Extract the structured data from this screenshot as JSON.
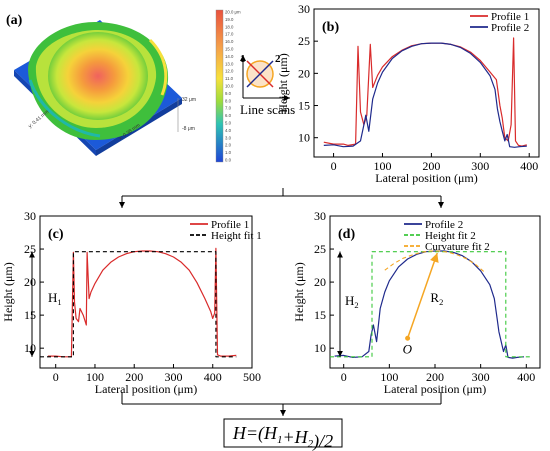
{
  "panel_a": {
    "label": "(a)",
    "scale_ticks": [
      "20.0 μm",
      "19.0",
      "18.0",
      "17.0",
      "16.0",
      "15.0",
      "14.0",
      "13.0",
      "12.0",
      "11.0",
      "10.0",
      "9.0",
      "8.0",
      "7.0",
      "6.0",
      "5.0",
      "4.0",
      "3.0",
      "2.0",
      "1.0",
      "0.0"
    ],
    "z_top": "32 μm",
    "z_bottom": "-8 μm",
    "y_extent": "y: 0.41 mm",
    "x_extent": "x: 0.38 mm",
    "scan_label_1": "1",
    "scan_label_2": "2",
    "scan_caption": "Line scans"
  },
  "formula": "H=(H1+H2)/2",
  "colors": {
    "profile1": "#d92b2b",
    "profile2": "#1f2a8c",
    "height_fit1": "#000000",
    "height_fit2": "#3cc83c",
    "curvature_fit2": "#f5a623",
    "axis": "#000000"
  },
  "chart_data": [
    {
      "id": "b",
      "type": "line",
      "label": "(b)",
      "xlabel": "Lateral position (μm)",
      "ylabel": "Height (μm)",
      "xlim": [
        -40,
        420
      ],
      "ylim": [
        7,
        30
      ],
      "xticks": [
        0,
        100,
        200,
        300,
        400
      ],
      "yticks": [
        10,
        15,
        20,
        25,
        30
      ],
      "legend_position": "top-right",
      "series": [
        {
          "name": "Profile 1",
          "color": "#d92b2b",
          "x": [
            -20,
            0,
            20,
            30,
            45,
            50,
            55,
            62,
            68,
            75,
            80,
            90,
            100,
            120,
            140,
            160,
            180,
            200,
            220,
            240,
            260,
            280,
            300,
            320,
            333,
            340,
            345,
            350,
            357,
            363,
            368,
            372,
            378,
            385,
            395
          ],
          "y": [
            9.3,
            9.0,
            9.0,
            8.8,
            9.0,
            24.2,
            14,
            12,
            13.5,
            24.5,
            17.8,
            19.7,
            21.0,
            22.6,
            23.6,
            24.3,
            24.6,
            24.7,
            24.7,
            24.5,
            24.1,
            23.3,
            22.0,
            20.2,
            19.0,
            15,
            13,
            10,
            9.5,
            12,
            25.5,
            9.5,
            8.8,
            8.7,
            8.9
          ]
        },
        {
          "name": "Profile 2",
          "color": "#1f2a8c",
          "x": [
            -20,
            0,
            20,
            40,
            55,
            62,
            66,
            72,
            80,
            90,
            100,
            120,
            140,
            160,
            180,
            200,
            220,
            240,
            260,
            280,
            300,
            320,
            330,
            335,
            340,
            345,
            350,
            355,
            360,
            370,
            380,
            395
          ],
          "y": [
            8.8,
            8.9,
            8.6,
            8.7,
            9.5,
            12,
            13.5,
            11,
            16,
            18.5,
            20.2,
            22.3,
            23.5,
            24.2,
            24.6,
            24.7,
            24.7,
            24.5,
            24.0,
            23.1,
            21.7,
            19.6,
            17.5,
            14.5,
            12.5,
            11,
            9.5,
            10.5,
            8.6,
            8.5,
            8.6,
            8.7
          ]
        }
      ]
    },
    {
      "id": "c",
      "type": "line",
      "label": "(c)",
      "xlabel": "Lateral position (μm)",
      "ylabel": "Height (μm)",
      "xlim": [
        -40,
        500
      ],
      "ylim": [
        7,
        30
      ],
      "xticks": [
        0,
        100,
        200,
        300,
        400,
        500
      ],
      "yticks": [
        10,
        15,
        20,
        25,
        30
      ],
      "legend_position": "top-right",
      "annotation": "H1",
      "series": [
        {
          "name": "Profile 1",
          "color": "#d92b2b",
          "x": [
            -20,
            0,
            20,
            40,
            45,
            48,
            52,
            58,
            62,
            70,
            78,
            80,
            85,
            90,
            100,
            120,
            140,
            160,
            180,
            200,
            220,
            240,
            260,
            280,
            300,
            320,
            340,
            360,
            380,
            395,
            400,
            405,
            408,
            412,
            420,
            440,
            460
          ],
          "y": [
            8.8,
            8.8,
            8.7,
            8.7,
            24.5,
            17,
            14.5,
            14,
            16,
            15,
            13.5,
            24.5,
            17.5,
            18.5,
            19.8,
            21.8,
            23.0,
            23.8,
            24.3,
            24.6,
            24.7,
            24.7,
            24.6,
            24.3,
            23.8,
            23.0,
            21.8,
            19.9,
            17.5,
            15.5,
            14.5,
            15.3,
            25.1,
            9,
            8.8,
            8.8,
            8.9
          ]
        },
        {
          "name": "Height fit 1",
          "color": "#000000",
          "dashed": true,
          "x": [
            -40,
            45,
            45,
            408,
            408,
            460
          ],
          "y": [
            8.7,
            8.7,
            24.6,
            24.6,
            8.7,
            8.7
          ]
        }
      ]
    },
    {
      "id": "d",
      "type": "line",
      "label": "(d)",
      "xlabel": "Lateral position (μm)",
      "ylabel": "Height (μm)",
      "xlim": [
        -30,
        430
      ],
      "ylim": [
        7,
        30
      ],
      "xticks": [
        0,
        100,
        200,
        300,
        400
      ],
      "yticks": [
        10,
        15,
        20,
        25,
        30
      ],
      "legend_position": "top-right",
      "annotations": [
        "H2",
        "R2",
        "O"
      ],
      "series": [
        {
          "name": "Profile 2",
          "color": "#1f2a8c",
          "x": [
            -20,
            0,
            20,
            40,
            55,
            60,
            65,
            72,
            80,
            90,
            100,
            120,
            140,
            160,
            180,
            200,
            220,
            240,
            260,
            280,
            300,
            320,
            330,
            336,
            340,
            345,
            350,
            355,
            360,
            370,
            380,
            395
          ],
          "y": [
            8.8,
            8.9,
            8.6,
            8.7,
            9.5,
            12,
            13.5,
            11,
            16,
            18.5,
            20.2,
            22.3,
            23.5,
            24.2,
            24.6,
            24.7,
            24.7,
            24.5,
            24.0,
            23.1,
            21.7,
            19.6,
            17.5,
            14.5,
            12.5,
            11,
            9.5,
            10.5,
            8.6,
            8.5,
            8.6,
            8.7
          ]
        },
        {
          "name": "Height fit 2",
          "color": "#3cc83c",
          "dashed": true,
          "x": [
            -30,
            62,
            62,
            355,
            355,
            410
          ],
          "y": [
            8.7,
            8.7,
            24.6,
            24.6,
            8.7,
            8.7
          ]
        },
        {
          "name": "Curvature fit 2",
          "color": "#f5a623",
          "dashed": true,
          "x": [
            90,
            110,
            130,
            150,
            170,
            190,
            210,
            230,
            250,
            270,
            290,
            310
          ],
          "y": [
            21.8,
            22.8,
            23.6,
            24.1,
            24.5,
            24.7,
            24.7,
            24.5,
            24.1,
            23.5,
            22.6,
            21.4
          ]
        }
      ]
    }
  ]
}
